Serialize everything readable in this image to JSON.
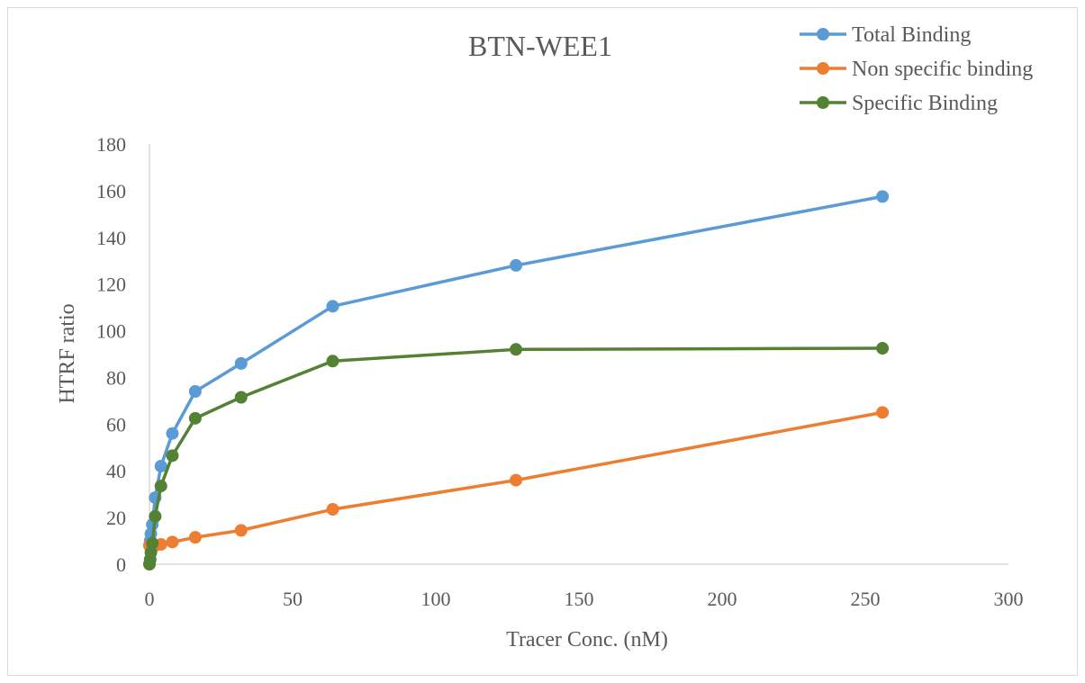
{
  "chart_data": {
    "type": "line",
    "title": "BTN-WEE1",
    "xlabel": "Tracer Conc. (nM)",
    "ylabel": "HTRF ratio",
    "xlim": [
      0,
      300
    ],
    "ylim": [
      0,
      180
    ],
    "xticks": [
      0,
      50,
      100,
      150,
      200,
      250,
      300
    ],
    "yticks": [
      0,
      20,
      40,
      60,
      80,
      100,
      120,
      140,
      160,
      180
    ],
    "grid": false,
    "legend_position": "top-right",
    "x": [
      0,
      0.25,
      0.5,
      1,
      2,
      4,
      8,
      16,
      32,
      64,
      128,
      256
    ],
    "series": [
      {
        "name": "Total Binding",
        "color": "#5b9bd5",
        "values": [
          8,
          10,
          13,
          17,
          28.5,
          42,
          56,
          74,
          86,
          110.5,
          128,
          157.5
        ]
      },
      {
        "name": "Non specific binding",
        "color": "#ed7d31",
        "values": [
          8,
          8,
          8,
          8,
          8,
          8.5,
          9.5,
          11.5,
          14.5,
          23.5,
          36,
          65
        ]
      },
      {
        "name": "Specific Binding",
        "color": "#548235",
        "values": [
          0,
          2,
          5,
          9,
          20.5,
          33.5,
          46.5,
          62.5,
          71.5,
          87,
          92,
          92.5
        ]
      }
    ]
  }
}
